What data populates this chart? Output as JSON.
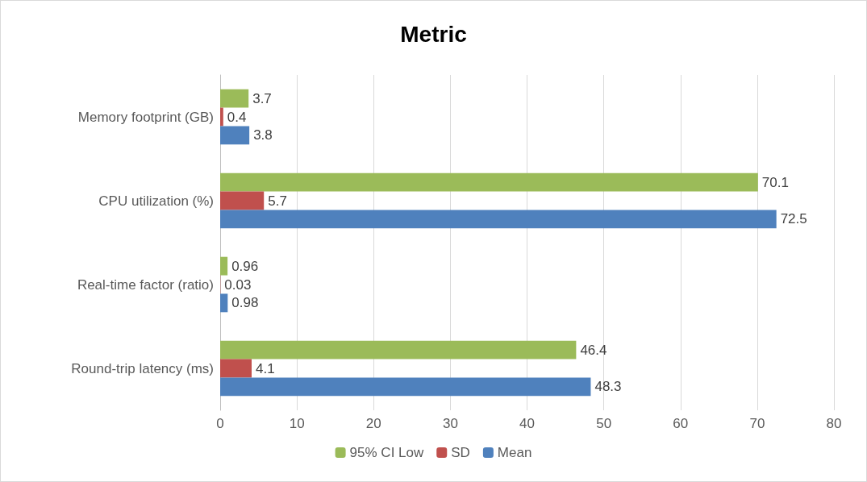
{
  "chart_data": {
    "type": "bar",
    "orientation": "horizontal",
    "title": "Metric",
    "categories": [
      "Memory footprint (GB)",
      "CPU utilization (%)",
      "Real-time factor (ratio)",
      "Round-trip latency (ms)"
    ],
    "series": [
      {
        "name": "95% CI Low",
        "color": "#9bbb59",
        "values": [
          3.7,
          70.1,
          0.96,
          46.4
        ]
      },
      {
        "name": "SD",
        "color": "#c0504d",
        "values": [
          0.4,
          5.7,
          0.03,
          4.1
        ]
      },
      {
        "name": "Mean",
        "color": "#4f81bd",
        "values": [
          3.8,
          72.5,
          0.98,
          48.3
        ]
      }
    ],
    "xlim": [
      0,
      80
    ],
    "xticks": [
      0,
      10,
      20,
      30,
      40,
      50,
      60,
      70,
      80
    ],
    "grid": "x",
    "legend": "bottom",
    "data_labels": true
  }
}
